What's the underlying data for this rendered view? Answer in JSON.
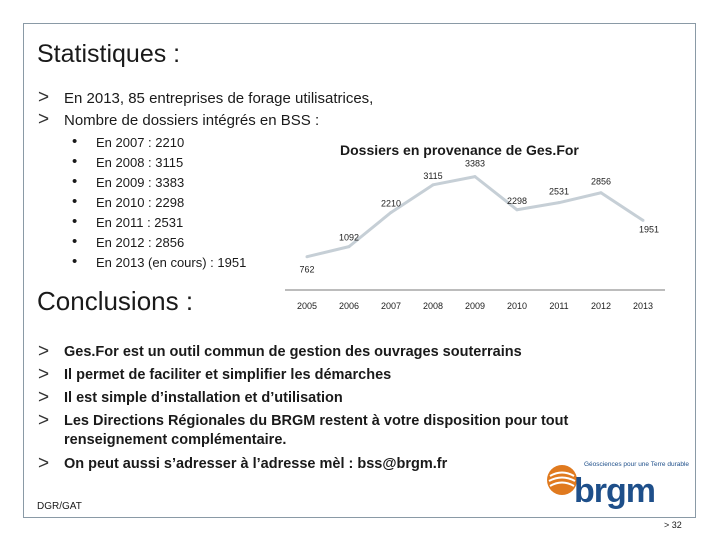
{
  "slide": {
    "title": "Statistiques :",
    "bullets": [
      "En 2013, 85 entreprises de forage utilisatrices,",
      "Nombre de dossiers intégrés en BSS :"
    ],
    "sub_bullets": [
      "En 2007 : 2210",
      "En 2008 : 3115",
      "En 2009 : 3383",
      "En 2010 : 2298",
      "En 2011 : 2531",
      "En 2012 : 2856",
      "En 2013 (en cours) : 1951"
    ],
    "conclusions_title": "Conclusions :",
    "conclusions": [
      "Ges.For est un outil commun de gestion des ouvrages souterrains",
      "Il permet de faciliter et simplifier les démarches",
      "Il est simple d’installation et d’utilisation",
      "Les Directions Régionales du BRGM restent à votre disposition pour tout",
      "renseignement complémentaire.",
      "On peut aussi s’adresser à l’adresse mèl : bss@brgm.fr"
    ],
    "arrow_glyph": ">",
    "bullet_glyph": "•"
  },
  "chart_data": {
    "type": "line",
    "title": "Dossiers en provenance de Ges.For",
    "categories": [
      "2005",
      "2006",
      "2007",
      "2008",
      "2009",
      "2010",
      "2011",
      "2012",
      "2013"
    ],
    "values": [
      762,
      1092,
      2210,
      3115,
      3383,
      2298,
      2531,
      2856,
      1951
    ],
    "ylim": [
      0,
      3600
    ],
    "line_color": "#c6cfd6",
    "grid": false,
    "xlabel": "",
    "ylabel": ""
  },
  "footer": {
    "left": "DGR/GAT",
    "page": "> 32"
  },
  "logo": {
    "name": "brgm",
    "tagline": "Géosciences pour une Terre durable",
    "colors": {
      "blue": "#1e4f8a",
      "orange": "#e07a1f"
    }
  }
}
